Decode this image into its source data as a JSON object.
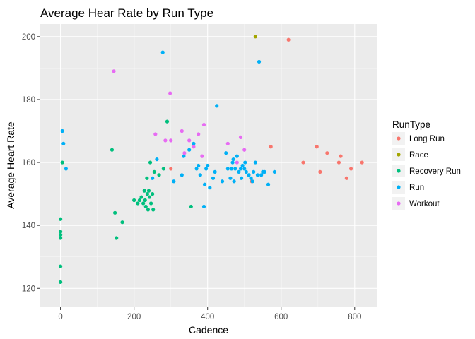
{
  "chart_data": {
    "type": "scatter",
    "title": "Average Hear Rate by Run Type",
    "xlabel": "Cadence",
    "ylabel": "Average Heart Rate",
    "xlim": [
      -55,
      860
    ],
    "ylim": [
      114,
      204
    ],
    "x_ticks": [
      0,
      200,
      400,
      600,
      800
    ],
    "y_ticks": [
      120,
      140,
      160,
      180,
      200
    ],
    "grid": true,
    "legend": {
      "title": "RunType",
      "position": "right"
    },
    "series": [
      {
        "name": "Long Run",
        "color": "#F8766D",
        "points": [
          [
            300,
            158
          ],
          [
            520,
            154
          ],
          [
            572,
            165
          ],
          [
            620,
            199
          ],
          [
            660,
            160
          ],
          [
            697,
            165
          ],
          [
            706,
            157
          ],
          [
            725,
            163
          ],
          [
            757,
            160
          ],
          [
            762,
            162
          ],
          [
            778,
            155
          ],
          [
            790,
            158
          ],
          [
            820,
            160
          ]
        ]
      },
      {
        "name": "Race",
        "color": "#A3A500",
        "points": [
          [
            530,
            200
          ]
        ]
      },
      {
        "name": "Recovery Run",
        "color": "#00BF7D",
        "points": [
          [
            0,
            122
          ],
          [
            0,
            127
          ],
          [
            0,
            136
          ],
          [
            0,
            137
          ],
          [
            0,
            138
          ],
          [
            0,
            142
          ],
          [
            5,
            160
          ],
          [
            140,
            164
          ],
          [
            148,
            144
          ],
          [
            152,
            136
          ],
          [
            168,
            141
          ],
          [
            200,
            148
          ],
          [
            210,
            147
          ],
          [
            215,
            148
          ],
          [
            220,
            149
          ],
          [
            225,
            147
          ],
          [
            228,
            151
          ],
          [
            230,
            148
          ],
          [
            232,
            146
          ],
          [
            235,
            155
          ],
          [
            236,
            150
          ],
          [
            238,
            145
          ],
          [
            240,
            151
          ],
          [
            242,
            149
          ],
          [
            244,
            160
          ],
          [
            246,
            147
          ],
          [
            250,
            150
          ],
          [
            252,
            145
          ],
          [
            255,
            157
          ],
          [
            268,
            156
          ],
          [
            280,
            158
          ],
          [
            290,
            173
          ],
          [
            355,
            146
          ]
        ]
      },
      {
        "name": "Run",
        "color": "#00B0F6",
        "points": [
          [
            5,
            170
          ],
          [
            8,
            166
          ],
          [
            15,
            158
          ],
          [
            250,
            155
          ],
          [
            262,
            161
          ],
          [
            278,
            195
          ],
          [
            308,
            154
          ],
          [
            330,
            156
          ],
          [
            335,
            162
          ],
          [
            350,
            164
          ],
          [
            362,
            166
          ],
          [
            370,
            158
          ],
          [
            375,
            159
          ],
          [
            380,
            156
          ],
          [
            390,
            146
          ],
          [
            392,
            153
          ],
          [
            396,
            158
          ],
          [
            400,
            159
          ],
          [
            406,
            152
          ],
          [
            415,
            155
          ],
          [
            420,
            157
          ],
          [
            425,
            178
          ],
          [
            440,
            154
          ],
          [
            450,
            163
          ],
          [
            455,
            158
          ],
          [
            462,
            155
          ],
          [
            465,
            158
          ],
          [
            468,
            160
          ],
          [
            470,
            161
          ],
          [
            472,
            154
          ],
          [
            475,
            158
          ],
          [
            480,
            162
          ],
          [
            485,
            157
          ],
          [
            490,
            158
          ],
          [
            492,
            155
          ],
          [
            495,
            159
          ],
          [
            500,
            158
          ],
          [
            502,
            160
          ],
          [
            505,
            157
          ],
          [
            512,
            156
          ],
          [
            518,
            155
          ],
          [
            522,
            154
          ],
          [
            525,
            157
          ],
          [
            530,
            160
          ],
          [
            536,
            156
          ],
          [
            540,
            192
          ],
          [
            546,
            156
          ],
          [
            550,
            157
          ],
          [
            555,
            157
          ],
          [
            565,
            153
          ],
          [
            582,
            157
          ]
        ]
      },
      {
        "name": "Workout",
        "color": "#E76BF3",
        "points": [
          [
            145,
            189
          ],
          [
            258,
            169
          ],
          [
            285,
            167
          ],
          [
            298,
            182
          ],
          [
            300,
            167
          ],
          [
            330,
            170
          ],
          [
            337,
            163
          ],
          [
            350,
            167
          ],
          [
            362,
            165
          ],
          [
            375,
            169
          ],
          [
            385,
            162
          ],
          [
            390,
            172
          ],
          [
            455,
            166
          ],
          [
            480,
            160
          ],
          [
            490,
            168
          ],
          [
            500,
            164
          ]
        ]
      }
    ]
  }
}
